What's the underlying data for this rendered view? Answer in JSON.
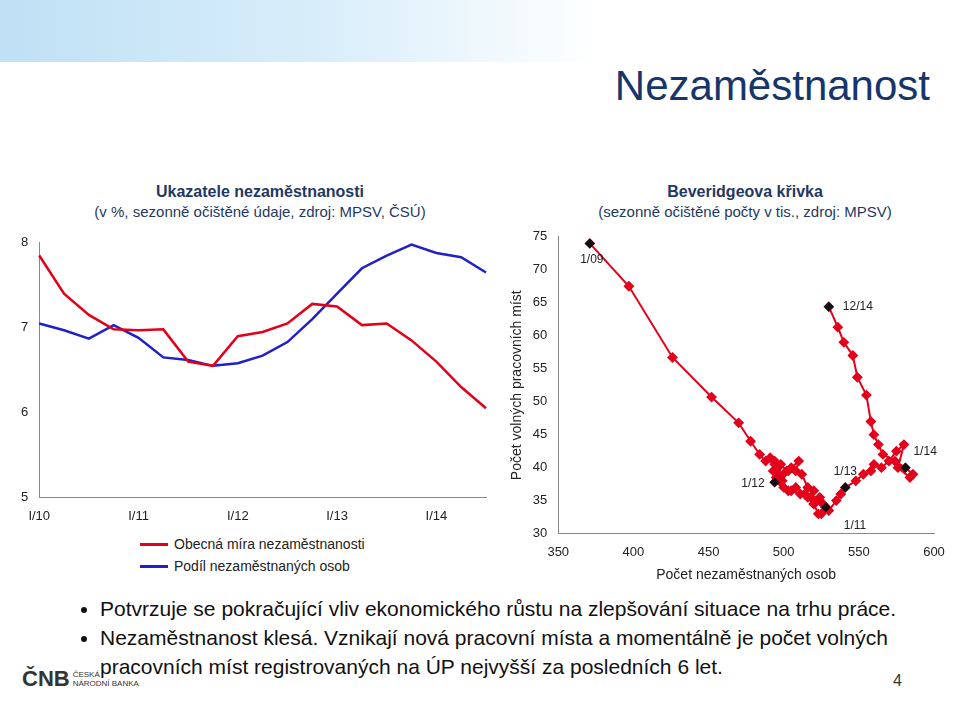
{
  "slide": {
    "title": "Nezaměstnanost",
    "bullets": [
      "Potvrzuje se pokračující vliv ekonomického růstu na zlepšování situace na trhu práce.",
      "Nezaměstnanost klesá. Vznikají nová pracovní místa a momentálně je počet volných pracovních míst registrovaných na ÚP nejvyšší za posledních 6 let."
    ],
    "logo": {
      "abbr": "ČNB",
      "name": [
        "ČESKÁ",
        "NÁRODNÍ BANKA"
      ]
    },
    "page": 4
  },
  "chart_data": [
    {
      "type": "line",
      "title": "Ukazatele nezaměstnanosti",
      "subtitle": "(v %, sezonně očištěné údaje, zdroj: MPSV, ČSÚ)",
      "categories": [
        "I/10",
        null,
        null,
        null,
        "I/11",
        null,
        null,
        null,
        "I/12",
        null,
        null,
        null,
        "I/13",
        null,
        null,
        null,
        "I/14",
        null,
        null
      ],
      "series": [
        {
          "name": "Obecná míra nezaměstnanosti",
          "color": "#e3001b",
          "values": [
            7.85,
            7.4,
            7.15,
            6.98,
            6.97,
            6.98,
            6.6,
            6.55,
            6.9,
            6.95,
            7.05,
            7.28,
            7.25,
            7.03,
            7.05,
            6.85,
            6.6,
            6.3,
            6.05
          ]
        },
        {
          "name": "Podíl nezaměstnaných osob",
          "color": "#2020c8",
          "values": [
            7.05,
            6.97,
            6.87,
            7.03,
            6.88,
            6.65,
            6.62,
            6.55,
            6.58,
            6.67,
            6.83,
            7.1,
            7.4,
            7.7,
            7.85,
            7.98,
            7.88,
            7.83,
            7.65
          ]
        }
      ],
      "ylim": [
        5,
        8
      ],
      "yticks": [
        5,
        6,
        7,
        8
      ],
      "grid": false,
      "legend": "bottom"
    },
    {
      "type": "scatter",
      "title": "Beveridgeova křivka",
      "subtitle": "(sezonně očištěné počty v tis., zdroj: MPSV)",
      "x_label": "Počet nezaměstnaných osob",
      "y_label": "Počet volných pracovních míst",
      "x": [
        371,
        397,
        426,
        452,
        470,
        478,
        484,
        488,
        491,
        494,
        496,
        494,
        498,
        502,
        498,
        505,
        510,
        508,
        512,
        516,
        520,
        518,
        524,
        526,
        528,
        523,
        520,
        514,
        508,
        503,
        499,
        503,
        497,
        495,
        493,
        496,
        494,
        500,
        505,
        511,
        516,
        520,
        524,
        528,
        525,
        530,
        535,
        538,
        541,
        548,
        553,
        558,
        560,
        565,
        570,
        575,
        580,
        576,
        584,
        586,
        581,
        574,
        566,
        563,
        560,
        558,
        555,
        549,
        546,
        540,
        536,
        530
      ],
      "values": [
        74,
        67.5,
        56.7,
        50.7,
        46.8,
        44,
        42,
        41,
        41.5,
        40.5,
        40,
        41,
        40.5,
        39.5,
        38,
        40,
        41,
        39.5,
        39,
        37,
        36.5,
        35.5,
        35,
        34.5,
        34,
        33,
        34.5,
        36,
        37,
        36.5,
        38,
        39.5,
        39,
        38.5,
        39.5,
        38.4,
        37.8,
        37,
        36.5,
        36,
        35.5,
        34.5,
        35.5,
        34,
        33,
        33.5,
        35,
        36,
        37,
        38,
        39,
        39.5,
        40.5,
        40,
        41,
        42.5,
        43.5,
        40,
        38.5,
        39,
        40,
        41,
        42,
        43.5,
        45,
        47,
        51,
        53.7,
        57,
        59,
        61.3,
        64.4
      ],
      "color": "#e3001b",
      "marker": "diamond",
      "line_style": "solid",
      "xlim": [
        350,
        600
      ],
      "xticks": [
        350,
        400,
        450,
        500,
        550,
        600
      ],
      "ylim": [
        30,
        75
      ],
      "yticks": [
        30,
        35,
        40,
        45,
        50,
        55,
        60,
        65,
        70,
        75
      ],
      "grid": false,
      "annotations": [
        {
          "text": "1/09",
          "x": 371,
          "y": 74
        },
        {
          "text": "1/11",
          "x": 528,
          "y": 34
        },
        {
          "text": "1/12",
          "x": 494,
          "y": 37.8
        },
        {
          "text": "1/13",
          "x": 541,
          "y": 37
        },
        {
          "text": "1/14",
          "x": 581,
          "y": 40
        },
        {
          "text": "12/14",
          "x": 530,
          "y": 64.4
        }
      ]
    }
  ]
}
